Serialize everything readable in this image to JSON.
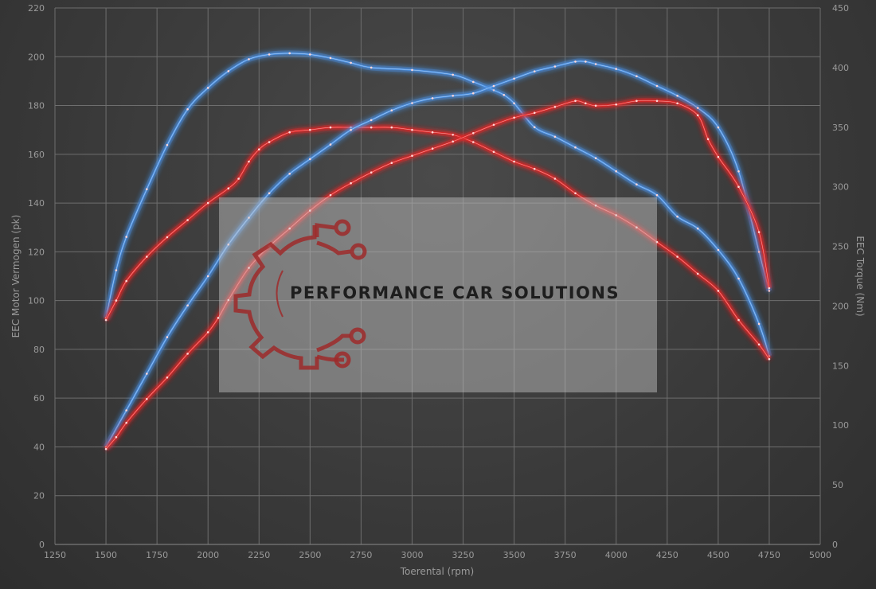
{
  "chart_data": {
    "type": "line",
    "xlabel": "Toerental (rpm)",
    "ylabel_left": "EEC Motor Vermogen (pk)",
    "ylabel_right": "EEC Torque (Nm)",
    "xlim": [
      1250,
      5000
    ],
    "ylim_left": [
      0,
      220
    ],
    "ylim_right": [
      0,
      450
    ],
    "x_ticks": [
      1250,
      1500,
      1750,
      2000,
      2250,
      2500,
      2750,
      3000,
      3250,
      3500,
      3750,
      4000,
      4250,
      4500,
      4750,
      5000
    ],
    "y_left_ticks": [
      0,
      20,
      40,
      60,
      80,
      100,
      120,
      140,
      160,
      180,
      200,
      220
    ],
    "y_right_ticks": [
      0,
      50,
      100,
      150,
      200,
      250,
      300,
      350,
      400,
      450
    ],
    "grid": true,
    "series": [
      {
        "color": "#4a90e2",
        "axis": "right",
        "x": [
          1500,
          1550,
          1600,
          1700,
          1800,
          1900,
          2000,
          2100,
          2200,
          2300,
          2400,
          2500,
          2600,
          2700,
          2800,
          3000,
          3200,
          3300,
          3400,
          3450,
          3500,
          3600,
          3700,
          3800,
          3900,
          4000,
          4100,
          4200,
          4300,
          4400,
          4500,
          4600,
          4700,
          4750
        ],
        "values": [
          190,
          230,
          258,
          298,
          335,
          365,
          383,
          397,
          407,
          411,
          412,
          411,
          408,
          404,
          400,
          398,
          394,
          388,
          381,
          377,
          370,
          350,
          342,
          333,
          324,
          313,
          302,
          293,
          275,
          265,
          247,
          223,
          185,
          158
        ]
      },
      {
        "color": "#e02828",
        "axis": "left",
        "x": [
          1500,
          1550,
          1600,
          1700,
          1800,
          1900,
          2000,
          2100,
          2150,
          2200,
          2250,
          2300,
          2400,
          2500,
          2600,
          2700,
          2800,
          2900,
          3000,
          3100,
          3200,
          3300,
          3400,
          3500,
          3600,
          3700,
          3800,
          3900,
          4000,
          4100,
          4200,
          4300,
          4400,
          4500,
          4600,
          4700,
          4750
        ],
        "values": [
          92,
          100,
          108,
          118,
          126,
          133,
          140,
          146,
          150,
          157,
          162,
          165,
          169,
          170,
          171,
          171,
          171,
          171,
          170,
          169,
          168,
          165,
          161,
          157,
          154,
          150,
          144,
          139,
          135,
          130,
          124,
          118,
          111,
          104,
          92,
          82,
          76
        ]
      },
      {
        "color": "#4a90e2",
        "axis": "left",
        "x": [
          1500,
          1600,
          1700,
          1800,
          1900,
          2000,
          2100,
          2200,
          2300,
          2400,
          2500,
          2600,
          2700,
          2800,
          2900,
          3000,
          3100,
          3200,
          3300,
          3400,
          3500,
          3600,
          3700,
          3800,
          3850,
          3900,
          4000,
          4100,
          4200,
          4300,
          4400,
          4500,
          4600,
          4700,
          4750
        ],
        "values": [
          40,
          55,
          70,
          85,
          98,
          110,
          123,
          134,
          144,
          152,
          158,
          164,
          170,
          174,
          178,
          181,
          183,
          184,
          185,
          188,
          191,
          194,
          196,
          198,
          198,
          197,
          195,
          192,
          188,
          184,
          179,
          171,
          153,
          120,
          104
        ]
      },
      {
        "color": "#e02828",
        "axis": "right",
        "x": [
          1500,
          1550,
          1600,
          1700,
          1800,
          1900,
          2000,
          2050,
          2100,
          2200,
          2300,
          2400,
          2500,
          2600,
          2700,
          2800,
          2900,
          3000,
          3100,
          3200,
          3300,
          3400,
          3500,
          3600,
          3700,
          3800,
          3850,
          3900,
          4000,
          4100,
          4200,
          4300,
          4400,
          4450,
          4500,
          4600,
          4700,
          4750
        ],
        "values": [
          80,
          90,
          102,
          122,
          140,
          160,
          178,
          190,
          205,
          232,
          250,
          265,
          280,
          293,
          303,
          312,
          320,
          326,
          332,
          338,
          345,
          352,
          358,
          362,
          367,
          372,
          370,
          368,
          369,
          372,
          372,
          370,
          360,
          340,
          325,
          300,
          262,
          215
        ]
      }
    ]
  },
  "watermark": {
    "text": "PERFORMANCE CAR SOLUTIONS",
    "logo_icon": "gear-circuit-logo",
    "logo_color": "#9e2a2a"
  }
}
